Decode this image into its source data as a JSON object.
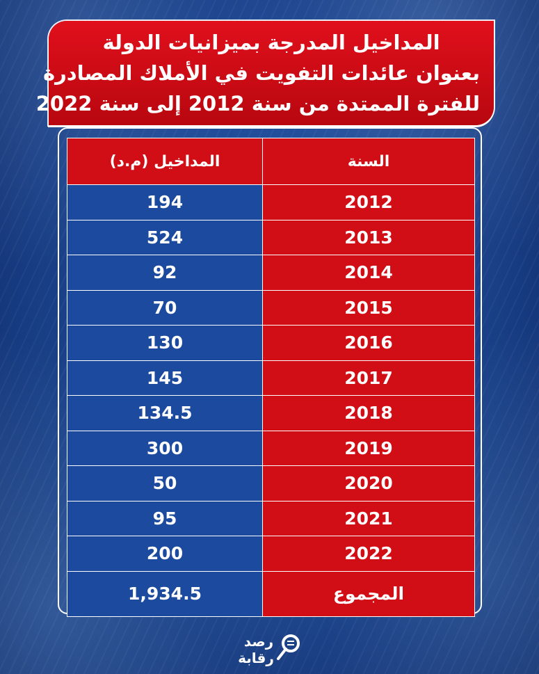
{
  "title": {
    "lines": [
      "المداخيل المدرجة بميزانيات الدولة",
      "بعنوان عائدات التفويت في الأملاك المصادرة",
      "للفترة الممتدة من سنة 2012 إلى سنة 2022"
    ]
  },
  "table": {
    "header": {
      "year": "السنة",
      "revenue": "المداخيل (م.د)"
    },
    "rows": [
      {
        "year": "2012",
        "value": "194"
      },
      {
        "year": "2013",
        "value": "524"
      },
      {
        "year": "2014",
        "value": "92"
      },
      {
        "year": "2015",
        "value": "70"
      },
      {
        "year": "2016",
        "value": "130"
      },
      {
        "year": "2017",
        "value": "145"
      },
      {
        "year": "2018",
        "value": "134.5"
      },
      {
        "year": "2019",
        "value": "300"
      },
      {
        "year": "2020",
        "value": "50"
      },
      {
        "year": "2021",
        "value": "95"
      },
      {
        "year": "2022",
        "value": "200"
      }
    ],
    "total": {
      "label": "المجموع",
      "value": "1,934.5"
    }
  },
  "logo": {
    "line1": "رصد",
    "line2": "رقابة",
    "icon": "magnifier-icon"
  },
  "colors": {
    "red": "#d10d15",
    "blue": "#1b4a9f",
    "background": "#123a86"
  }
}
